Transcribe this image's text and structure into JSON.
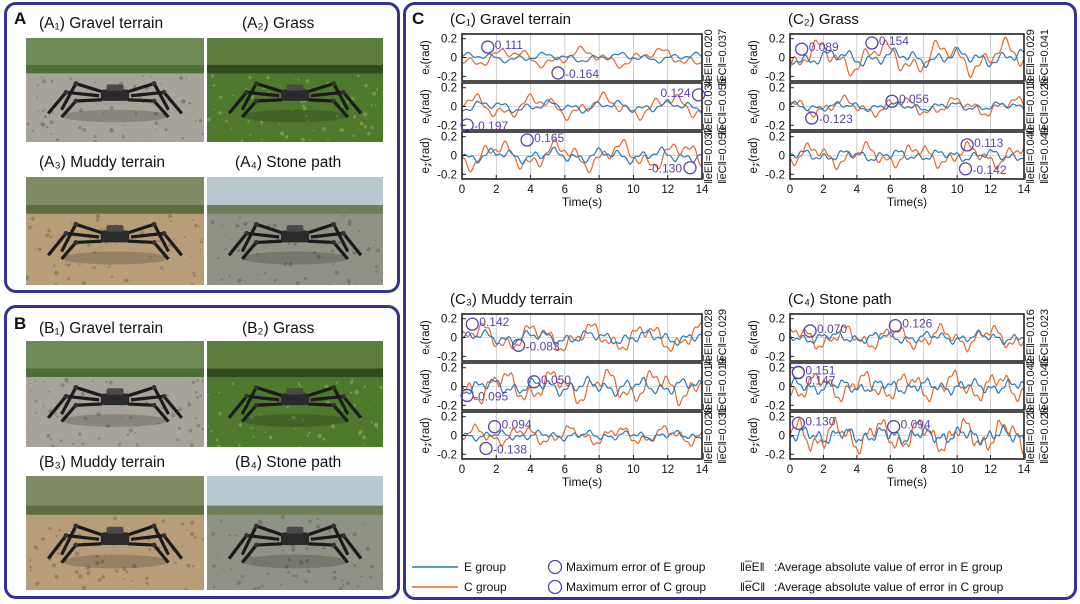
{
  "panelA": {
    "label": "A",
    "photos": [
      {
        "title": "(A₁) Gravel terrain",
        "scene": "gravel"
      },
      {
        "title": "(A₂) Grass",
        "scene": "grass"
      },
      {
        "title": "(A₃) Muddy terrain",
        "scene": "mud"
      },
      {
        "title": "(A₄) Stone path",
        "scene": "stone"
      }
    ]
  },
  "panelB": {
    "label": "B",
    "photos": [
      {
        "title": "(B₁) Gravel terrain",
        "scene": "gravel"
      },
      {
        "title": "(B₂) Grass",
        "scene": "grass"
      },
      {
        "title": "(B₃) Muddy terrain",
        "scene": "mud"
      },
      {
        "title": "(B₄) Stone path",
        "scene": "stone"
      }
    ]
  },
  "panelC": {
    "label": "C",
    "colors": {
      "E": "#2a7ab8",
      "C": "#e06a2c",
      "marker": "#5a3fa8",
      "axis": "#222222",
      "grid": "#bbbbbb"
    },
    "legend": {
      "e_line": "E group",
      "c_line": "C group",
      "e_marker": "Maximum error of E group",
      "c_marker": "Maximum error of C group",
      "e_norm_symbol": "‖e̅E‖",
      "c_norm_symbol": "‖e̅C‖",
      "e_norm_text": ":Average  absolute value of error in E group",
      "c_norm_text": ":Average  absolute value of error in C group"
    }
  },
  "chart_data": [
    {
      "type": "line",
      "title": "(C₁) Gravel terrain",
      "xlabel": "Time(s)",
      "xlim": [
        0,
        14
      ],
      "xticks": [
        "0",
        "2",
        "4",
        "6",
        "8",
        "10",
        "12",
        "14"
      ],
      "subplots": [
        {
          "ylabel": "eₓ(rad)",
          "ylim": [
            -0.25,
            0.25
          ],
          "yticks": [
            "0.2",
            "0",
            "-0.2"
          ],
          "norm_E": "‖e̅E‖=0.020",
          "norm_C": "‖e̅C‖=0.037",
          "markers": [
            {
              "group": "E",
              "t": 1.5,
              "v": 0.111,
              "label": "0.111"
            },
            {
              "group": "C",
              "t": 5.6,
              "v": -0.164,
              "label": "-0.164"
            }
          ]
        },
        {
          "ylabel": "eᵧ(rad)",
          "ylim": [
            -0.25,
            0.25
          ],
          "yticks": [
            "0.2",
            "0",
            "-0.2"
          ],
          "norm_E": "‖e̅E‖=0.034",
          "norm_C": "‖e̅C‖=0.055",
          "markers": [
            {
              "group": "C",
              "t": 0.3,
              "v": -0.197,
              "label": "-0.197"
            },
            {
              "group": "E",
              "t": 13.8,
              "v": 0.124,
              "label": "0.124"
            }
          ]
        },
        {
          "ylabel": "e𝓏(rad)",
          "ylim": [
            -0.25,
            0.25
          ],
          "yticks": [
            "0.2",
            "0",
            "-0.2"
          ],
          "norm_E": "‖e̅E‖=0.037",
          "norm_C": "‖e̅C‖=0.050",
          "markers": [
            {
              "group": "C",
              "t": 3.8,
              "v": 0.165,
              "label": "0.165"
            },
            {
              "group": "E",
              "t": 13.3,
              "v": -0.13,
              "label": "-0.130"
            }
          ]
        }
      ]
    },
    {
      "type": "line",
      "title": "(C₂) Grass",
      "xlabel": "Time(s)",
      "xlim": [
        0,
        14
      ],
      "xticks": [
        "0",
        "2",
        "4",
        "6",
        "8",
        "10",
        "12",
        "14"
      ],
      "subplots": [
        {
          "ylabel": "eₓ(rad)",
          "ylim": [
            -0.25,
            0.25
          ],
          "yticks": [
            "0.2",
            "0",
            "-0.2"
          ],
          "norm_E": "‖e̅E‖=0.029",
          "norm_C": "‖e̅C‖=0.041",
          "markers": [
            {
              "group": "E",
              "t": 0.7,
              "v": 0.089,
              "label": "0.089"
            },
            {
              "group": "C",
              "t": 4.9,
              "v": 0.154,
              "label": "0.154"
            }
          ]
        },
        {
          "ylabel": "eᵧ(rad)",
          "ylim": [
            -0.25,
            0.25
          ],
          "yticks": [
            "0.2",
            "0",
            "-0.2"
          ],
          "norm_E": "‖e̅E‖=0.013",
          "norm_C": "‖e̅C‖=0.028",
          "markers": [
            {
              "group": "E",
              "t": 6.1,
              "v": 0.056,
              "label": "0.056"
            },
            {
              "group": "C",
              "t": 1.3,
              "v": -0.123,
              "label": "-0.123"
            }
          ]
        },
        {
          "ylabel": "e𝓏(rad)",
          "ylim": [
            -0.25,
            0.25
          ],
          "yticks": [
            "0.2",
            "0",
            "-0.2"
          ],
          "norm_E": "‖e̅E‖=0.040",
          "norm_C": "‖e̅C‖=0.049",
          "markers": [
            {
              "group": "E",
              "t": 10.6,
              "v": 0.113,
              "label": "0.113"
            },
            {
              "group": "C",
              "t": 10.5,
              "v": -0.142,
              "label": "-0.142"
            }
          ]
        }
      ]
    },
    {
      "type": "line",
      "title": "(C₃) Muddy terrain",
      "xlabel": "Time(s)",
      "xlim": [
        0,
        14
      ],
      "xticks": [
        "0",
        "2",
        "4",
        "6",
        "8",
        "10",
        "12",
        "14"
      ],
      "subplots": [
        {
          "ylabel": "eₓ(rad)",
          "ylim": [
            -0.25,
            0.25
          ],
          "yticks": [
            "0.2",
            "0",
            "-0.2"
          ],
          "norm_E": "‖e̅E‖=0.028",
          "norm_C": "‖e̅C‖=0.029",
          "markers": [
            {
              "group": "C",
              "t": 0.6,
              "v": 0.142,
              "label": "0.142"
            },
            {
              "group": "E",
              "t": 3.3,
              "v": -0.083,
              "label": "-0.083"
            }
          ]
        },
        {
          "ylabel": "eᵧ(rad)",
          "ylim": [
            -0.25,
            0.25
          ],
          "yticks": [
            "0.2",
            "0",
            "-0.2"
          ],
          "norm_E": "‖e̅E‖=0.014",
          "norm_C": "‖e̅C‖=0.019",
          "markers": [
            {
              "group": "E",
              "t": 4.2,
              "v": 0.05,
              "label": "0.050"
            },
            {
              "group": "C",
              "t": 0.3,
              "v": -0.095,
              "label": "-0.095"
            }
          ]
        },
        {
          "ylabel": "e𝓏(rad)",
          "ylim": [
            -0.25,
            0.25
          ],
          "yticks": [
            "0.2",
            "0",
            "-0.2"
          ],
          "norm_E": "‖e̅E‖=0.028",
          "norm_C": "‖e̅C‖=0.031",
          "markers": [
            {
              "group": "E",
              "t": 1.9,
              "v": 0.094,
              "label": "0.094"
            },
            {
              "group": "C",
              "t": 1.4,
              "v": -0.138,
              "label": "-0.138"
            }
          ]
        }
      ]
    },
    {
      "type": "line",
      "title": "(C₄) Stone path",
      "xlabel": "Time(s)",
      "xlim": [
        0,
        14
      ],
      "xticks": [
        "0",
        "2",
        "4",
        "6",
        "8",
        "10",
        "12",
        "14"
      ],
      "subplots": [
        {
          "ylabel": "eₓ(rad)",
          "ylim": [
            -0.25,
            0.25
          ],
          "yticks": [
            "0.2",
            "0",
            "-0.2"
          ],
          "norm_E": "‖e̅E‖=0.016",
          "norm_C": "‖e̅C‖=0.023",
          "markers": [
            {
              "group": "E",
              "t": 1.2,
              "v": 0.07,
              "label": "0.070"
            },
            {
              "group": "C",
              "t": 6.3,
              "v": 0.126,
              "label": "0.126"
            }
          ]
        },
        {
          "ylabel": "eᵧ(rad)",
          "ylim": [
            -0.25,
            0.25
          ],
          "yticks": [
            "0.2",
            "0",
            "-0.2"
          ],
          "norm_E": "‖e̅E‖=0.042",
          "norm_C": "‖e̅C‖=0.043",
          "markers": [
            {
              "group": "C",
              "t": 0.5,
              "v": 0.151,
              "label": "0.151"
            },
            {
              "group": "E",
              "t": 0.5,
              "v": 0.147,
              "label": "0.147"
            }
          ]
        },
        {
          "ylabel": "e𝓏(rad)",
          "ylim": [
            -0.25,
            0.25
          ],
          "yticks": [
            "0.2",
            "0",
            "-0.2"
          ],
          "norm_E": "‖e̅E‖=0.023",
          "norm_C": "‖e̅C‖=0.028",
          "markers": [
            {
              "group": "C",
              "t": 0.5,
              "v": 0.13,
              "label": "0.130"
            },
            {
              "group": "E",
              "t": 6.2,
              "v": 0.094,
              "label": "0.094"
            }
          ]
        }
      ]
    }
  ]
}
